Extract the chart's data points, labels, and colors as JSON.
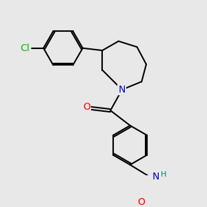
{
  "background_color": "#e8e8e8",
  "bond_color": "#000000",
  "bond_width": 1.5,
  "atom_colors": {
    "N": "#0000cc",
    "O": "#ff0000",
    "Cl": "#00bb00",
    "NH": "#008080"
  },
  "font_size_atom": 10
}
